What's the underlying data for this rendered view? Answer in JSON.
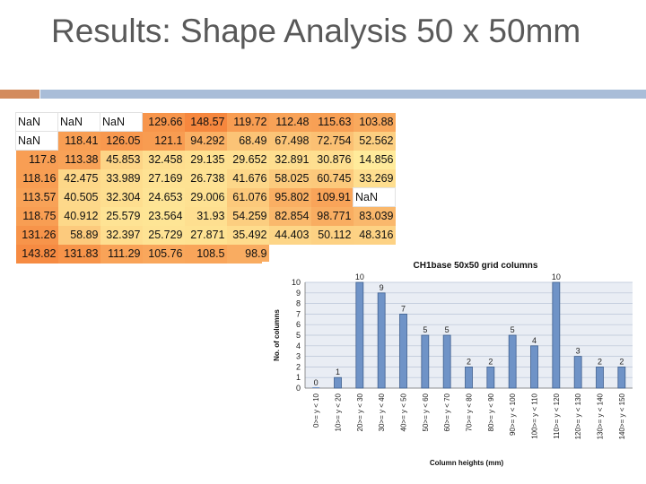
{
  "slide": {
    "title": "Results: Shape Analysis 50 x 50mm"
  },
  "table": {
    "rows": [
      [
        "NaN",
        "NaN",
        "NaN",
        "129.66",
        "148.57",
        "119.72",
        "112.48",
        "115.63",
        "103.88"
      ],
      [
        "NaN",
        "118.41",
        "126.05",
        "121.1",
        "94.292",
        "68.49",
        "67.498",
        "72.754",
        "52.562"
      ],
      [
        "117.8",
        "113.38",
        "45.853",
        "32.458",
        "29.135",
        "29.652",
        "32.891",
        "30.876",
        "14.856"
      ],
      [
        "118.16",
        "42.475",
        "33.989",
        "27.169",
        "26.738",
        "41.676",
        "58.025",
        "60.745",
        "33.269"
      ],
      [
        "113.57",
        "40.505",
        "32.304",
        "24.653",
        "29.006",
        "61.076",
        "95.802",
        "109.91",
        "NaN"
      ],
      [
        "118.75",
        "40.912",
        "25.579",
        "23.564",
        "31.93",
        "54.259",
        "82.854",
        "98.771",
        "83.039"
      ],
      [
        "131.26",
        "58.89",
        "32.397",
        "25.729",
        "27.871",
        "35.492",
        "44.403",
        "50.112",
        "48.316"
      ],
      [
        "143.82",
        "131.83",
        "111.29",
        "105.76",
        "108.5",
        "98.9",
        "",
        "",
        ""
      ]
    ]
  },
  "chart_data": {
    "type": "bar",
    "title": "CH1base 50x50 grid columns",
    "xlabel": "Column heights (mm)",
    "ylabel": "No. of columns",
    "categories": [
      "0>= y < 10",
      "10>= y < 20",
      "20>= y < 30",
      "30>= y < 40",
      "40>= y < 50",
      "50>= y < 60",
      "60>= y < 70",
      "70>= y < 80",
      "80>= y < 90",
      "90>= y < 100",
      "100>= y < 110",
      "110>= y < 120",
      "120>= y < 130",
      "130>= y < 140",
      "140>= y < 150"
    ],
    "values": [
      0,
      1,
      10,
      9,
      7,
      5,
      5,
      2,
      2,
      5,
      4,
      10,
      3,
      2,
      2
    ],
    "ylim": [
      0,
      10
    ],
    "yticks": [
      "0",
      "1",
      "2",
      "3",
      "4",
      "5",
      "6",
      "7",
      "8",
      "9",
      "10"
    ],
    "grid": true,
    "colors": {
      "bar": "#6f93c7",
      "bar_edge": "#3e5f8e",
      "plot_bg": "#e9edf4",
      "grid": "#b9c4d6"
    }
  }
}
